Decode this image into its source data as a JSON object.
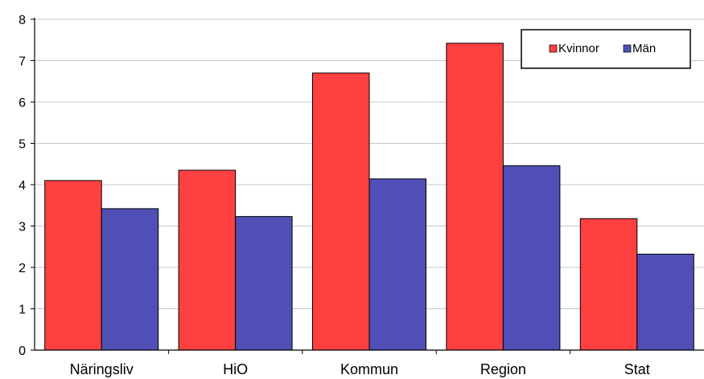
{
  "chart_data": {
    "type": "bar",
    "title": "",
    "xlabel": "",
    "ylabel": "",
    "categories": [
      "Näringsliv",
      "HiO",
      "Kommun",
      "Region",
      "Stat"
    ],
    "series": [
      {
        "name": "Kvinnor",
        "color": "#ff4040",
        "values": [
          4.1,
          4.35,
          6.7,
          7.42,
          3.18
        ]
      },
      {
        "name": "Män",
        "color": "#4f4fb5",
        "values": [
          3.42,
          3.23,
          4.14,
          4.46,
          2.32
        ]
      }
    ],
    "ylim": [
      0,
      8
    ],
    "yticks": [
      "0",
      "1",
      "2",
      "3",
      "4",
      "5",
      "6",
      "7",
      "8"
    ],
    "grid": true,
    "legend_position": "top-right"
  }
}
